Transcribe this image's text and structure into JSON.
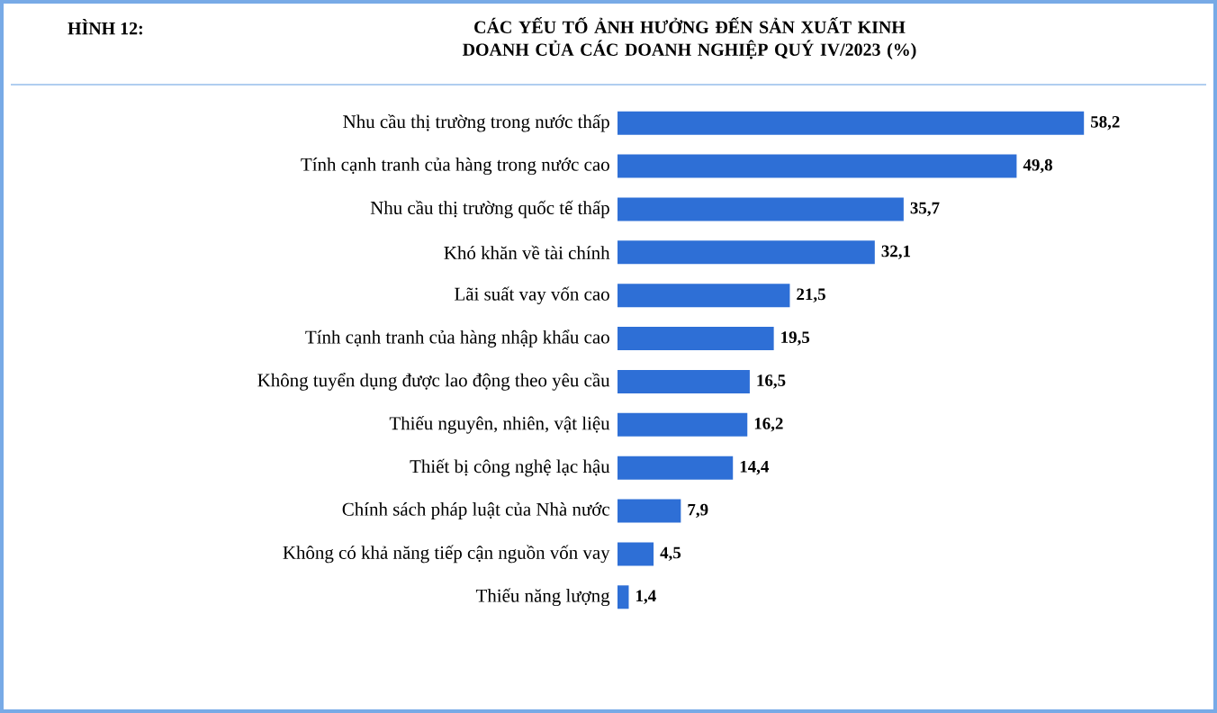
{
  "chart_data": {
    "type": "bar",
    "orientation": "horizontal",
    "title": "CÁC YẾU TỐ ẢNH HƯỞNG ĐẾN SẢN XUẤT KINH DOANH CỦA CÁC DOANH NGHIỆP QUÝ IV/2023 (%)",
    "annotations": [
      "HÌNH 12:"
    ],
    "categories": [
      "Nhu cầu thị trường trong nước thấp",
      "Tính cạnh tranh của hàng trong nước cao",
      "Nhu cầu thị trường quốc tế thấp",
      "Khó khăn về tài chính",
      "Lãi suất vay vốn cao",
      "Tính cạnh tranh của hàng nhập khẩu cao",
      "Không tuyển dụng được lao động theo yêu cầu",
      "Thiếu nguyên, nhiên, vật liệu",
      "Thiết bị công nghệ lạc hậu",
      "Chính sách pháp luật của Nhà nước",
      "Không có khả năng tiếp cận nguồn vốn vay",
      "Thiếu năng lượng"
    ],
    "values": [
      58.2,
      49.8,
      35.7,
      32.1,
      21.5,
      19.5,
      16.5,
      16.2,
      14.4,
      7.9,
      4.5,
      1.4
    ],
    "value_labels": [
      "58,2",
      "49,8",
      "35,7",
      "32,1",
      "21,5",
      "19,5",
      "16,5",
      "16,2",
      "14,4",
      "7,9",
      "4,5",
      "1,4"
    ],
    "color": "#2e6fd6"
  }
}
